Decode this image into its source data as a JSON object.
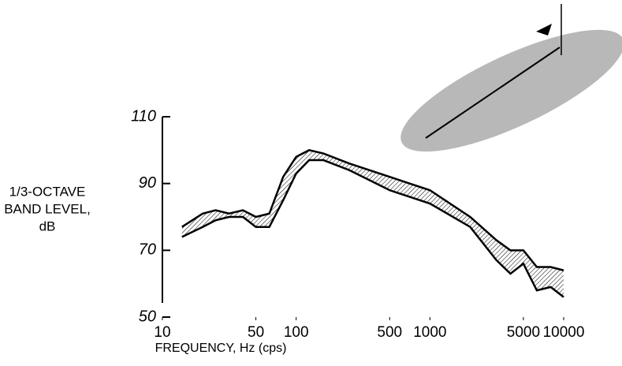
{
  "chart_data": {
    "type": "range-area",
    "xlabel": "FREQUENCY, Hz (cps)",
    "ylabel": [
      "1/3-OCTAVE",
      "BAND LEVEL,",
      "dB"
    ],
    "x": [
      14,
      20,
      25,
      31.5,
      40,
      50,
      63,
      80,
      100,
      125,
      160,
      250,
      500,
      1000,
      2000,
      3150,
      4000,
      5000,
      6300,
      8000,
      10000
    ],
    "upper": [
      77,
      81,
      82,
      81,
      82,
      80,
      81,
      92,
      98,
      100,
      99,
      96,
      92,
      88,
      80,
      73,
      70,
      70,
      65,
      65,
      64
    ],
    "lower": [
      74,
      77,
      79,
      80,
      80,
      77,
      77,
      85,
      93,
      97,
      97,
      94,
      88,
      84,
      77,
      67,
      63,
      66,
      58,
      59,
      56
    ],
    "color": "#000000",
    "xscale": "log",
    "xlim": [
      10,
      10000
    ],
    "xticks": [
      10,
      50,
      100,
      500,
      1000,
      5000,
      10000
    ],
    "ylim": [
      50,
      110
    ],
    "yticks": [
      50,
      70,
      90,
      110
    ]
  }
}
